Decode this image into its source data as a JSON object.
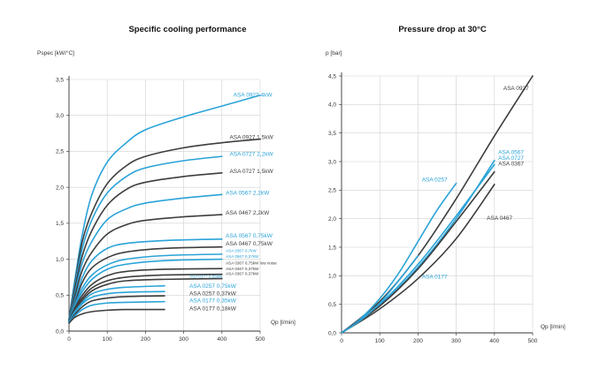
{
  "colors": {
    "blue": "#2aa3d8",
    "dark": "#3d3d3d",
    "grid": "#d0d0d0"
  },
  "chart_data": [
    {
      "type": "line",
      "title": "Specific cooling performance",
      "ylabel": "Pspec [kW/°C]",
      "xlabel": "Qp [l/min]",
      "xlim": [
        0,
        500
      ],
      "ylim": [
        0,
        3.5
      ],
      "xticks": [
        "0",
        "100",
        "200",
        "300",
        "400",
        "500"
      ],
      "yticks": [
        "0,0",
        "0,5",
        "1,0",
        "1,5",
        "2,0",
        "2,5",
        "3,0",
        "3,5"
      ],
      "grid": true,
      "series": [
        {
          "name": "ASA 0927 4kW",
          "color": "blue",
          "x": [
            0,
            15,
            35,
            60,
            100,
            150,
            200,
            300,
            400,
            500
          ],
          "y": [
            0.17,
            0.7,
            1.35,
            1.9,
            2.35,
            2.62,
            2.8,
            2.98,
            3.13,
            3.28
          ]
        },
        {
          "name": "ASA 0927 1,5kW",
          "color": "dark",
          "x": [
            0,
            15,
            35,
            60,
            100,
            150,
            200,
            300,
            400,
            500
          ],
          "y": [
            0.16,
            0.65,
            1.25,
            1.65,
            2.05,
            2.3,
            2.43,
            2.55,
            2.62,
            2.67
          ]
        },
        {
          "name": "ASA 0727 2,2kW",
          "color": "blue",
          "x": [
            0,
            15,
            35,
            60,
            100,
            150,
            200,
            300,
            400
          ],
          "y": [
            0.16,
            0.62,
            1.15,
            1.55,
            1.92,
            2.15,
            2.27,
            2.37,
            2.43
          ]
        },
        {
          "name": "ASA 0727 1,5kW",
          "color": "dark",
          "x": [
            0,
            15,
            35,
            60,
            100,
            150,
            200,
            300,
            400
          ],
          "y": [
            0.16,
            0.58,
            1.05,
            1.4,
            1.75,
            1.97,
            2.07,
            2.15,
            2.2
          ]
        },
        {
          "name": "ASA 0567 2,2kW",
          "color": "blue",
          "x": [
            0,
            15,
            35,
            60,
            100,
            150,
            200,
            300,
            400
          ],
          "y": [
            0.15,
            0.52,
            0.95,
            1.25,
            1.55,
            1.7,
            1.78,
            1.85,
            1.9
          ]
        },
        {
          "name": "ASA 0467 2,2kW",
          "color": "dark",
          "x": [
            0,
            15,
            35,
            60,
            100,
            150,
            200,
            300,
            400
          ],
          "y": [
            0.15,
            0.48,
            0.85,
            1.1,
            1.35,
            1.48,
            1.54,
            1.59,
            1.62
          ]
        },
        {
          "name": "ASA 0567 0,75kW",
          "color": "blue",
          "x": [
            0,
            15,
            35,
            60,
            100,
            150,
            250,
            400
          ],
          "y": [
            0.15,
            0.42,
            0.75,
            0.98,
            1.15,
            1.22,
            1.26,
            1.28
          ]
        },
        {
          "name": "ASA 0467 0,75kW",
          "color": "dark",
          "x": [
            0,
            15,
            35,
            60,
            100,
            150,
            250,
            400
          ],
          "y": [
            0.14,
            0.38,
            0.68,
            0.88,
            1.02,
            1.1,
            1.15,
            1.17
          ]
        },
        {
          "name": "ASA 0367 0,7kW",
          "color": "blue",
          "x": [
            0,
            15,
            35,
            60,
            100,
            150,
            250,
            400
          ],
          "y": [
            0.14,
            0.36,
            0.6,
            0.78,
            0.92,
            1.0,
            1.05,
            1.07
          ]
        },
        {
          "name": "ASA 0567 0,37kW",
          "color": "blue",
          "x": [
            0,
            15,
            35,
            60,
            100,
            150,
            250,
            400
          ],
          "y": [
            0.14,
            0.34,
            0.55,
            0.72,
            0.86,
            0.93,
            0.98,
            1.0
          ]
        },
        {
          "name": "ASA 0367 0,75kW low noise",
          "color": "dark",
          "x": [
            0,
            15,
            35,
            60,
            100,
            150,
            250,
            400
          ],
          "y": [
            0.14,
            0.32,
            0.5,
            0.65,
            0.77,
            0.83,
            0.86,
            0.87
          ]
        },
        {
          "name": "ASA 0467 0,37kW",
          "color": "dark",
          "x": [
            0,
            15,
            35,
            60,
            100,
            150,
            250,
            400
          ],
          "y": [
            0.13,
            0.3,
            0.46,
            0.6,
            0.7,
            0.75,
            0.78,
            0.79
          ]
        },
        {
          "name": "ASA 0367 0,37kW",
          "color": "dark",
          "x": [
            0,
            15,
            35,
            60,
            100,
            150,
            250,
            400
          ],
          "y": [
            0.13,
            0.28,
            0.43,
            0.56,
            0.65,
            0.7,
            0.72,
            0.73
          ]
        },
        {
          "name": "ASA 0177 0,55kW",
          "color": "blue",
          "x": [
            0,
            15,
            35,
            60,
            100,
            150,
            250
          ],
          "y": [
            0.13,
            0.27,
            0.4,
            0.52,
            0.58,
            0.61,
            0.63
          ]
        },
        {
          "name": "ASA 0257 0,75kW",
          "color": "blue",
          "x": [
            0,
            15,
            35,
            60,
            100,
            150,
            250
          ],
          "y": [
            0.13,
            0.25,
            0.38,
            0.47,
            0.52,
            0.54,
            0.55
          ]
        },
        {
          "name": "ASA 0257 0,37kW",
          "color": "dark",
          "x": [
            0,
            15,
            35,
            60,
            100,
            150,
            250
          ],
          "y": [
            0.12,
            0.23,
            0.34,
            0.42,
            0.46,
            0.48,
            0.49
          ]
        },
        {
          "name": "ASA 0177 0,35kW",
          "color": "blue",
          "x": [
            0,
            15,
            35,
            60,
            100,
            150,
            250
          ],
          "y": [
            0.12,
            0.21,
            0.3,
            0.36,
            0.39,
            0.4,
            0.41
          ]
        },
        {
          "name": "ASA 0177 0,18kW",
          "color": "dark",
          "x": [
            0,
            15,
            35,
            60,
            100,
            150,
            250
          ],
          "y": [
            0.11,
            0.19,
            0.24,
            0.27,
            0.29,
            0.3,
            0.3
          ]
        }
      ],
      "labels": [
        {
          "text": "ASA 0927  4kW",
          "color": "blue",
          "x": 430,
          "y": 3.26,
          "size": "n"
        },
        {
          "text": "ASA 0927  1,5kW",
          "color": "dark",
          "x": 420,
          "y": 2.67,
          "size": "n"
        },
        {
          "text": "ASA 0727  2,2kW",
          "color": "blue",
          "x": 420,
          "y": 2.44,
          "size": "n"
        },
        {
          "text": "ASA 0727  1,5kW",
          "color": "dark",
          "x": 420,
          "y": 2.2,
          "size": "n"
        },
        {
          "text": "ASA 0567  2,2kW",
          "color": "blue",
          "x": 410,
          "y": 1.9,
          "size": "n"
        },
        {
          "text": "ASA 0467  2,2kW",
          "color": "dark",
          "x": 410,
          "y": 1.62,
          "size": "n"
        },
        {
          "text": "ASA 0567  0,75kW",
          "color": "blue",
          "x": 410,
          "y": 1.3,
          "size": "n"
        },
        {
          "text": "ASA 0467  0,75kW",
          "color": "dark",
          "x": 410,
          "y": 1.19,
          "size": "n"
        },
        {
          "text": "ASA 0367  0,7kW",
          "color": "blue",
          "x": 410,
          "y": 1.1,
          "size": "s"
        },
        {
          "text": "ASA 0567  0,37kW",
          "color": "blue",
          "x": 410,
          "y": 1.02,
          "size": "s"
        },
        {
          "text": "ASA 0367  0,75kW low noise",
          "color": "dark",
          "x": 410,
          "y": 0.93,
          "size": "s"
        },
        {
          "text": "ASA 0467  0,37kW",
          "color": "dark",
          "x": 410,
          "y": 0.85,
          "size": "s"
        },
        {
          "text": "ASA 0367  0,37kW",
          "color": "dark",
          "x": 410,
          "y": 0.78,
          "size": "s"
        },
        {
          "text": "ASA 0177  0,55kW",
          "color": "blue",
          "x": 315,
          "y": 0.74,
          "size": "s"
        },
        {
          "text": "ASA 0257  0,75kW",
          "color": "blue",
          "x": 315,
          "y": 0.6,
          "size": "n"
        },
        {
          "text": "ASA 0257  0,37kW",
          "color": "dark",
          "x": 315,
          "y": 0.5,
          "size": "n"
        },
        {
          "text": "ASA 0177  0,35kW",
          "color": "blue",
          "x": 315,
          "y": 0.4,
          "size": "n"
        },
        {
          "text": "ASA 0177  0,18kW",
          "color": "dark",
          "x": 315,
          "y": 0.29,
          "size": "n"
        }
      ]
    },
    {
      "type": "line",
      "title": "Pressure drop at 30°C",
      "ylabel": "p [bar]",
      "xlabel": "Qp [l/min]",
      "xlim": [
        0,
        500
      ],
      "ylim": [
        0,
        4.5
      ],
      "xticks": [
        "0",
        "100",
        "200",
        "300",
        "400",
        "500"
      ],
      "yticks": [
        "0,0",
        "0,5",
        "1,0",
        "1,5",
        "2,0",
        "2,5",
        "3,0",
        "3,5",
        "4,0",
        "4,5"
      ],
      "grid": true,
      "series": [
        {
          "name": "ASA 0927",
          "color": "dark",
          "x": [
            0,
            100,
            200,
            300,
            400,
            500
          ],
          "y": [
            0,
            0.55,
            1.35,
            2.35,
            3.45,
            4.5
          ]
        },
        {
          "name": "ASA 0257",
          "color": "blue",
          "x": [
            0,
            50,
            100,
            150,
            200,
            250,
            300
          ],
          "y": [
            0,
            0.25,
            0.6,
            1.05,
            1.6,
            2.15,
            2.62
          ]
        },
        {
          "name": "ASA 0567",
          "color": "blue",
          "x": [
            0,
            100,
            200,
            300,
            400
          ],
          "y": [
            0,
            0.48,
            1.15,
            2.0,
            3.02
          ]
        },
        {
          "name": "ASA 0727",
          "color": "blue",
          "x": [
            0,
            100,
            200,
            300,
            400
          ],
          "y": [
            0,
            0.5,
            1.2,
            2.05,
            2.95
          ]
        },
        {
          "name": "ASA 0367",
          "color": "dark",
          "x": [
            0,
            100,
            200,
            300,
            400
          ],
          "y": [
            0,
            0.47,
            1.12,
            1.95,
            2.82
          ]
        },
        {
          "name": "ASA 0467",
          "color": "dark",
          "x": [
            0,
            100,
            200,
            300,
            400
          ],
          "y": [
            0,
            0.42,
            0.95,
            1.65,
            2.6
          ]
        },
        {
          "name": "ASA 0177",
          "color": "blue",
          "x": [
            0,
            50,
            100,
            150,
            200
          ],
          "y": [
            0,
            0.22,
            0.52,
            0.92,
            1.35
          ]
        }
      ],
      "labels": [
        {
          "text": "ASA 0927",
          "color": "dark",
          "x": 490,
          "y": 4.25,
          "size": "n",
          "anchor": "end"
        },
        {
          "text": "ASA 0257",
          "color": "blue",
          "x": 210,
          "y": 2.65,
          "size": "n"
        },
        {
          "text": "ASA 0567",
          "color": "blue",
          "x": 410,
          "y": 3.13,
          "size": "n"
        },
        {
          "text": "ASA 0727",
          "color": "blue",
          "x": 410,
          "y": 3.03,
          "size": "n"
        },
        {
          "text": "ASA 0367",
          "color": "dark",
          "x": 410,
          "y": 2.93,
          "size": "n"
        },
        {
          "text": "ASA 0467",
          "color": "dark",
          "x": 380,
          "y": 1.98,
          "size": "n"
        },
        {
          "text": "ASA 0177",
          "color": "blue",
          "x": 210,
          "y": 0.95,
          "size": "n"
        }
      ]
    }
  ]
}
